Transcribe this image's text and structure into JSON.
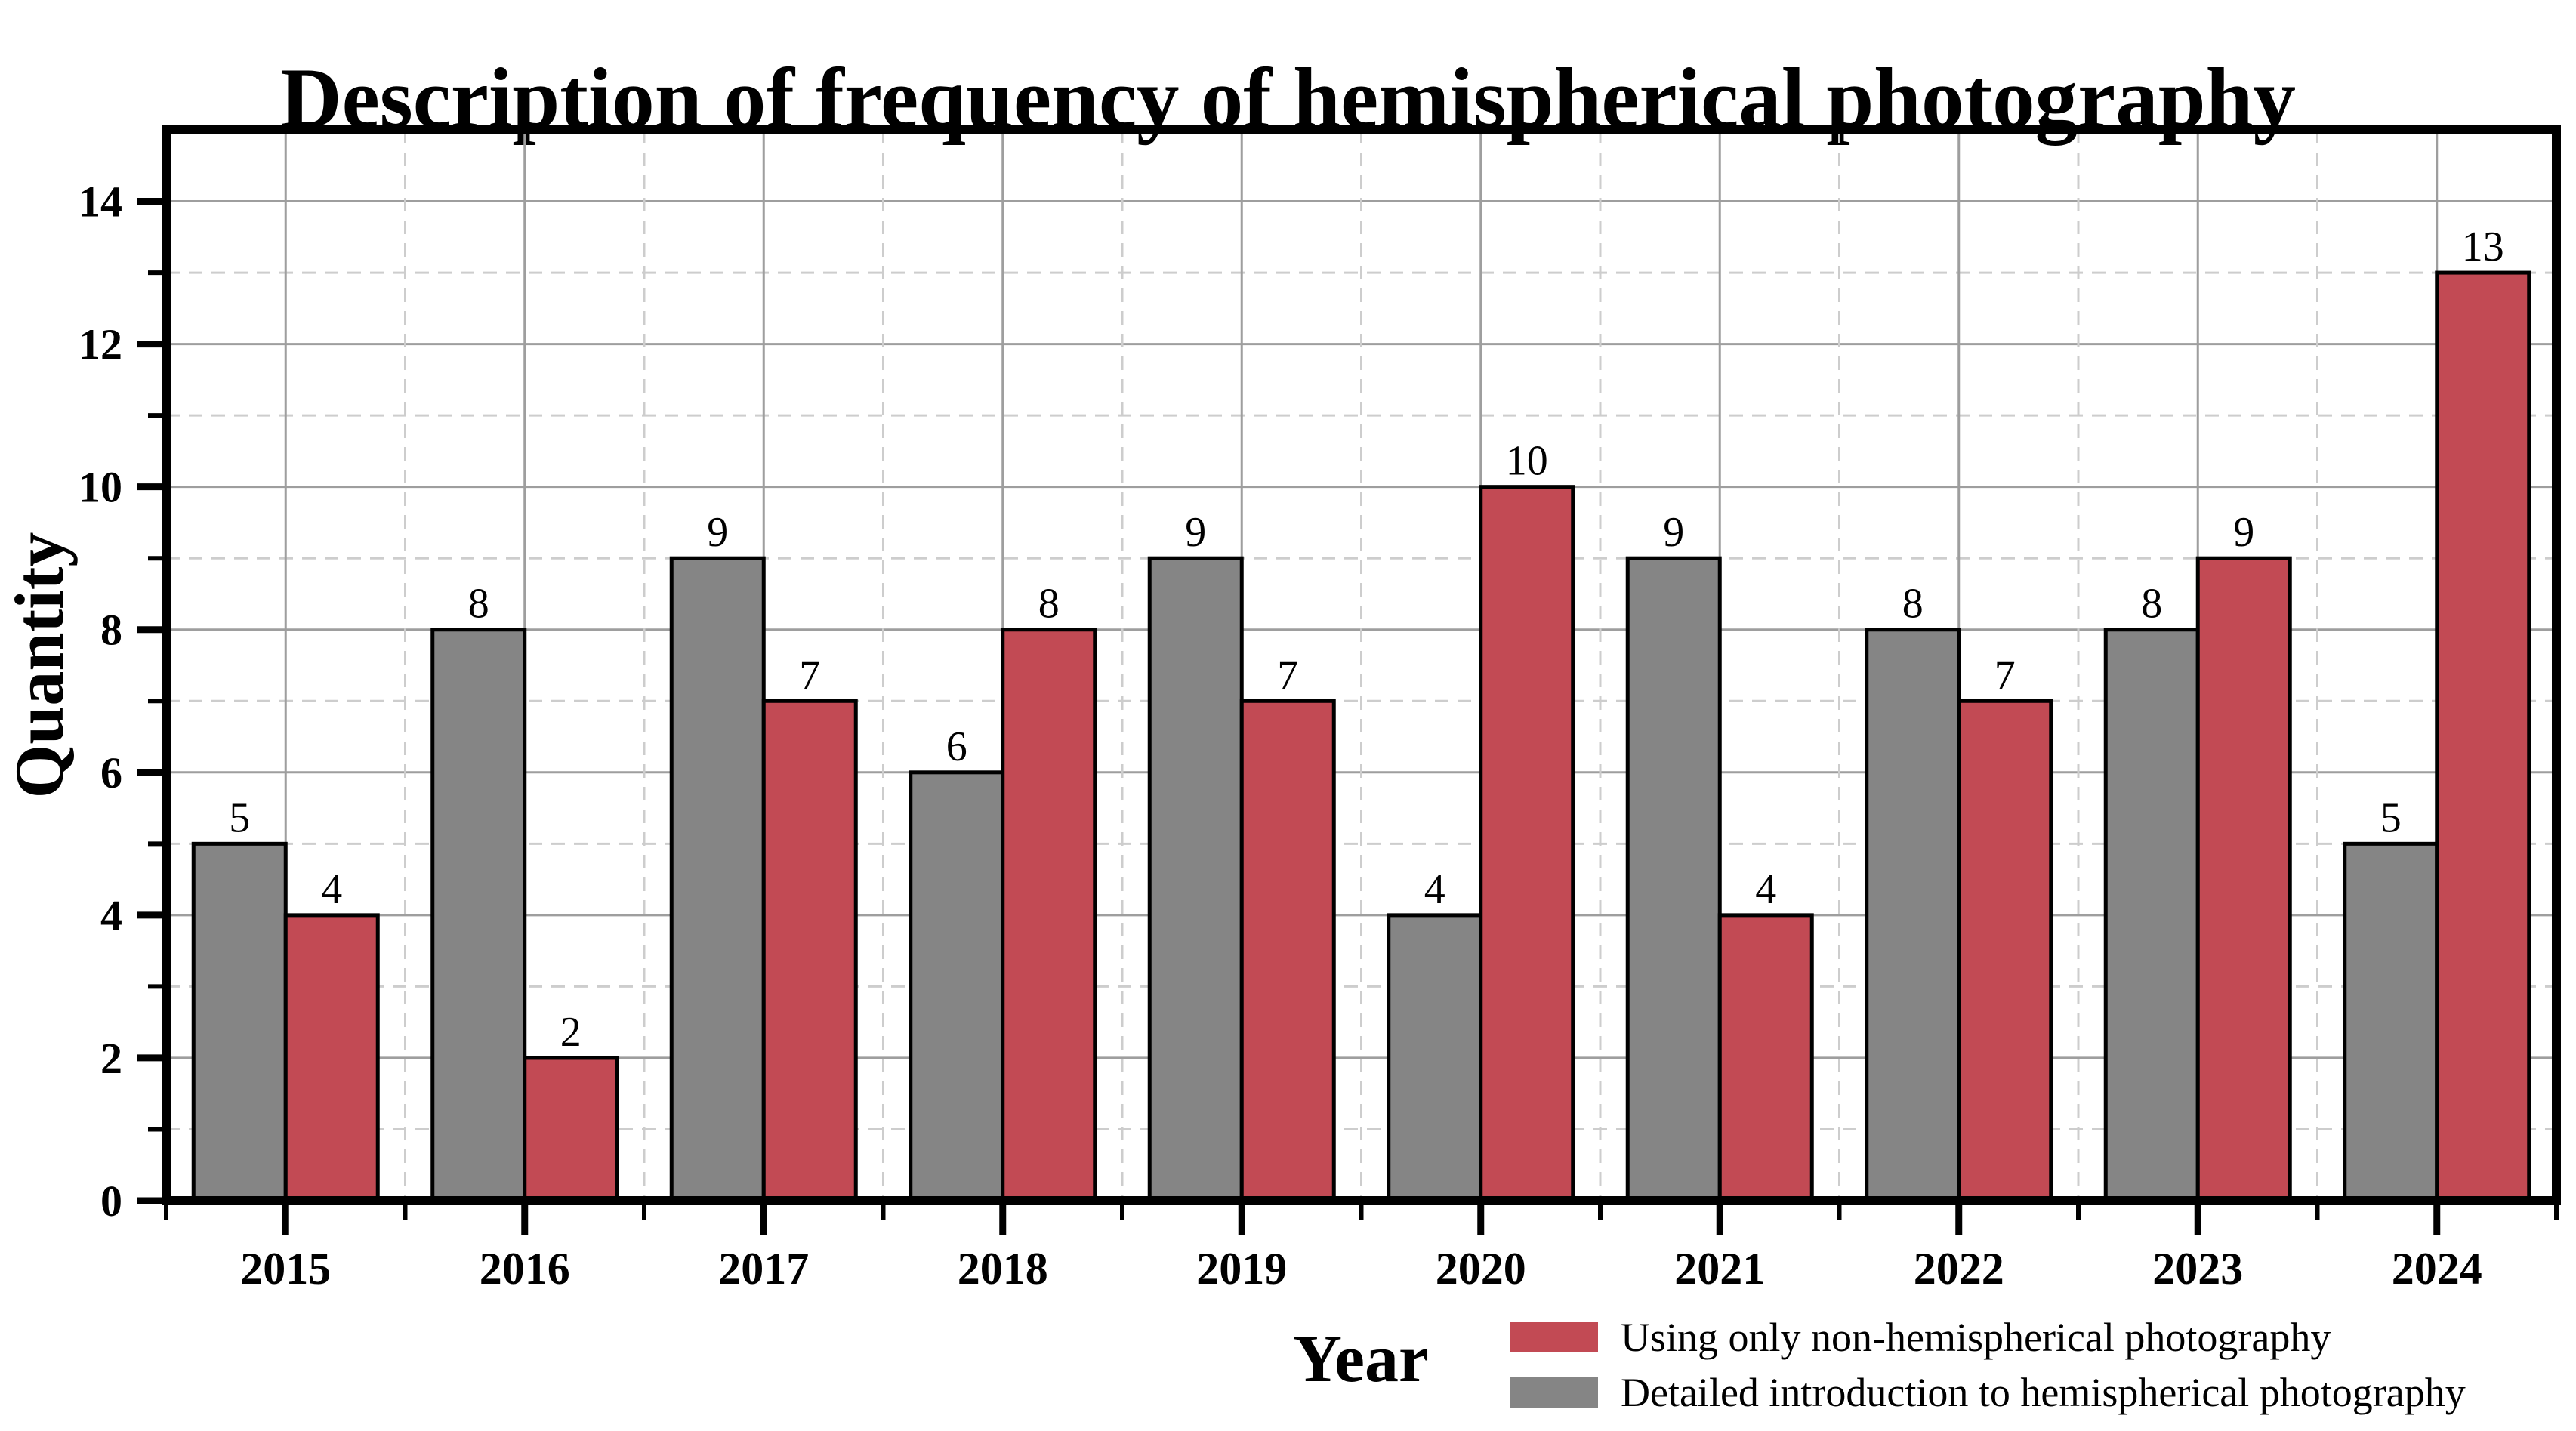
{
  "chart_data": {
    "type": "bar",
    "title": "Description of frequency of hemispherical photography",
    "xlabel": "Year",
    "ylabel": "Quantity",
    "categories": [
      "2015",
      "2016",
      "2017",
      "2018",
      "2019",
      "2020",
      "2021",
      "2022",
      "2023",
      "2024"
    ],
    "series": [
      {
        "name": "Detailed introduction to hemispherical photography",
        "color": "#858585",
        "values": [
          5,
          8,
          9,
          6,
          9,
          4,
          9,
          8,
          8,
          5
        ]
      },
      {
        "name": "Using only non-hemispherical photography",
        "color": "#c24a54",
        "values": [
          4,
          2,
          7,
          8,
          7,
          10,
          4,
          7,
          9,
          13
        ]
      }
    ],
    "ylim": [
      0,
      15
    ],
    "yticks_labeled": [
      0,
      2,
      4,
      6,
      8,
      10,
      12,
      14
    ],
    "bar_value_labels": true,
    "grid": {
      "horizontal_solid_at_even": true,
      "horizontal_dashed_at_odd": true,
      "vertical_solid_at_category_centers": true,
      "vertical_dashed_at_category_boundaries": true
    },
    "legend_position": "bottom-right"
  },
  "legend": {
    "items": [
      {
        "label": "Using only non-hemispherical photography",
        "color": "#c24a54"
      },
      {
        "label": "Detailed introduction to hemispherical photography",
        "color": "#858585"
      }
    ]
  },
  "style_colors": {
    "bar_edge": "#000000",
    "spine": "#000000",
    "grid_solid": "#9e9e9e",
    "grid_dashed": "#cdcdcd",
    "background": "#ffffff"
  }
}
